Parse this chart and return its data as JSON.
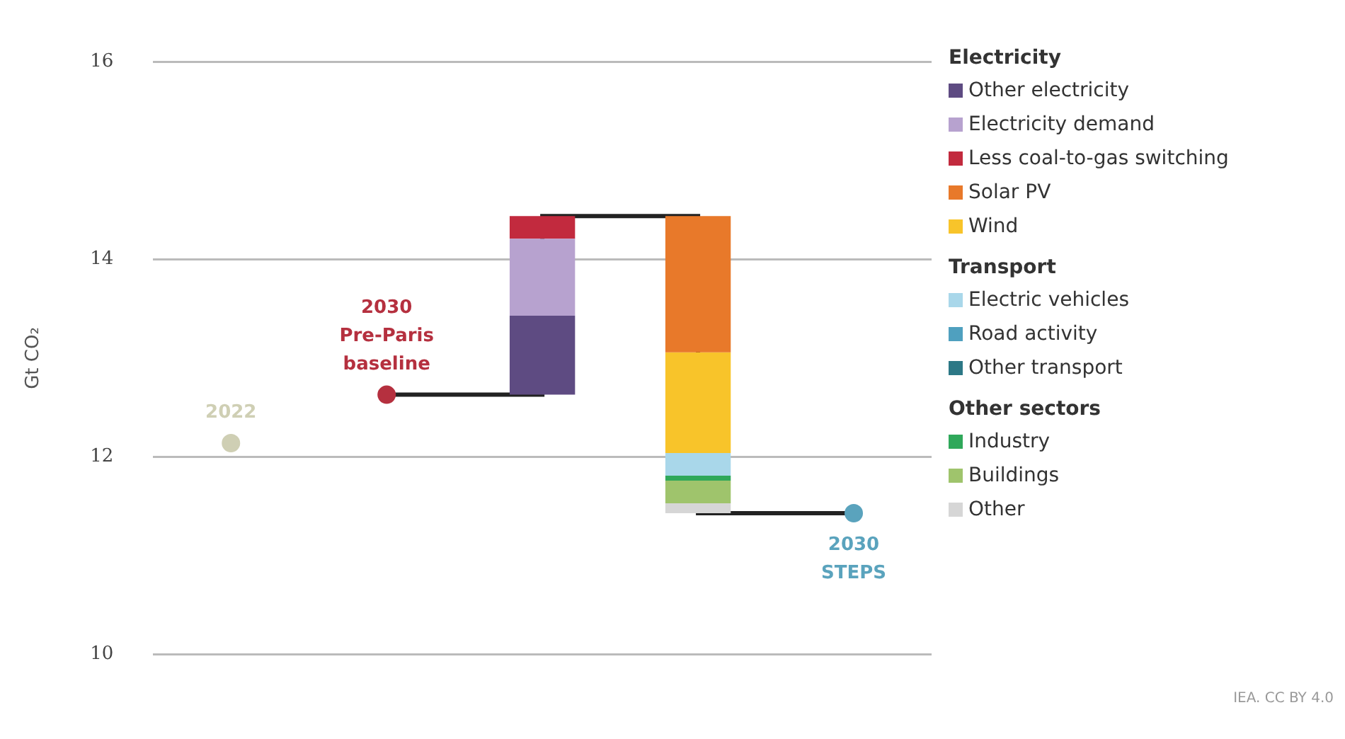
{
  "chart_data": {
    "type": "bar",
    "ylabel": "Gt CO₂",
    "categories": [
      null,
      null,
      null,
      null,
      null
    ],
    "ylim": [
      10,
      16
    ],
    "yticks": [
      10,
      12,
      14,
      16
    ],
    "grid": "y",
    "legend": "right",
    "annotations": [
      "Electricity",
      "Transport",
      "Other sectors",
      "IEA. CC BY 4.0"
    ],
    "series": [
      {
        "type": "step",
        "color": "#222222",
        "values": [
          null,
          12.63,
          14.44,
          11.43,
          11.43
        ]
      },
      {
        "name": "2022",
        "type": "scatter",
        "color": "#cfcfb4",
        "values": [
          12.14,
          null,
          null,
          null,
          null
        ]
      },
      {
        "name": "2030 Pre-Paris baseline",
        "type": "scatter",
        "color": "#b5303f",
        "values": [
          null,
          12.63,
          null,
          null,
          null
        ]
      },
      {
        "name": "2030 STEPS",
        "type": "scatter",
        "color": "#5aa3bd",
        "values": [
          null,
          null,
          null,
          null,
          11.43
        ]
      },
      {
        "name": "Other electricity",
        "color": "#5e4b82",
        "base": [
          null,
          null,
          12.63,
          null,
          null
        ],
        "values": [
          null,
          null,
          0.8,
          null,
          null
        ]
      },
      {
        "name": "Electricity demand",
        "color": "#b7a2cf",
        "base": [
          null,
          null,
          13.43,
          null,
          null
        ],
        "values": [
          null,
          null,
          0.78,
          null,
          null
        ]
      },
      {
        "name": "Less coal-to-gas switching",
        "color": "#c22a3e",
        "base": [
          null,
          null,
          14.21,
          null,
          null
        ],
        "values": [
          null,
          null,
          0.23,
          null,
          null
        ]
      },
      {
        "name": "Solar PV",
        "color": "#e8792a",
        "base": [
          null,
          null,
          null,
          14.44,
          null
        ],
        "values": [
          null,
          null,
          null,
          -1.38,
          null
        ]
      },
      {
        "name": "Wind",
        "color": "#f8c42a",
        "base": [
          null,
          null,
          null,
          13.06,
          null
        ],
        "values": [
          null,
          null,
          null,
          -1.02,
          null
        ]
      },
      {
        "name": "Electric vehicles",
        "color": "#a9d7ea",
        "base": [
          null,
          null,
          null,
          12.04,
          null
        ],
        "values": [
          null,
          null,
          null,
          -0.23,
          null
        ]
      },
      {
        "name": "Road activity",
        "color": "#4fa0bf",
        "values": [
          null,
          null,
          null,
          null,
          null
        ]
      },
      {
        "name": "Other transport",
        "color": "#2c7886",
        "values": [
          null,
          null,
          null,
          null,
          null
        ]
      },
      {
        "name": "Industry",
        "color": "#2fa85a",
        "base": [
          null,
          null,
          null,
          11.81,
          null
        ],
        "values": [
          null,
          null,
          null,
          -0.05,
          null
        ]
      },
      {
        "name": "Buildings",
        "color": "#9fc46c",
        "base": [
          null,
          null,
          null,
          11.76,
          null
        ],
        "values": [
          null,
          null,
          null,
          -0.23,
          null
        ]
      },
      {
        "name": "Other",
        "color": "#d6d6d6",
        "base": [
          null,
          null,
          null,
          11.53,
          null
        ],
        "values": [
          null,
          null,
          null,
          -0.1,
          null
        ]
      }
    ]
  }
}
